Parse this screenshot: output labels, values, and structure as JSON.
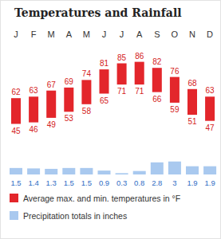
{
  "chart_data": {
    "type": "range_bar",
    "title": "Temperatures and Rainfall",
    "categories": [
      "J",
      "F",
      "M",
      "A",
      "M",
      "J",
      "J",
      "A",
      "S",
      "O",
      "N",
      "D"
    ],
    "series": [
      {
        "name": "Average max. and min. temperatures in °F",
        "type": "range_bar",
        "color": "#e3262b",
        "low": [
          45,
          46,
          49,
          53,
          58,
          65,
          71,
          71,
          66,
          59,
          51,
          47
        ],
        "high": [
          62,
          63,
          67,
          69,
          74,
          81,
          85,
          86,
          82,
          76,
          68,
          63
        ]
      },
      {
        "name": "Precipitation totals in inches",
        "type": "bar",
        "color": "#a9c9ef",
        "axis": "y2",
        "values": [
          1.5,
          1.4,
          1.3,
          1.5,
          1.5,
          0.9,
          0.3,
          0.8,
          2.8,
          3,
          1.9,
          1.9
        ]
      }
    ],
    "ylim": [
      40,
      90
    ],
    "y2lim": [
      0,
      3.5
    ],
    "data_labels": true,
    "tick_labels": "x"
  }
}
